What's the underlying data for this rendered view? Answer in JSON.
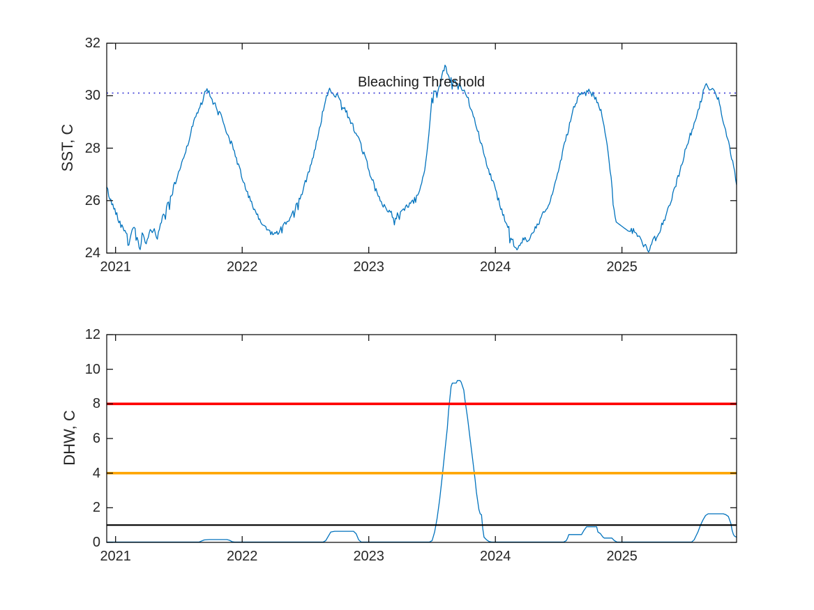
{
  "colors": {
    "series_blue": "#0072BD",
    "threshold_dotted_blue": "#4646d8",
    "dhw_red": "#ff0000",
    "dhw_orange": "#ffa500",
    "dhw_black": "#000000",
    "axis": "#000000",
    "tick_label": "#262626"
  },
  "chart_data": [
    {
      "type": "line",
      "title": "",
      "xlabel": "",
      "ylabel": "SST, C",
      "xlim": [
        2020.93,
        2025.905
      ],
      "ylim": [
        24,
        32
      ],
      "xticks": [
        2021,
        2022,
        2023,
        2024,
        2025
      ],
      "xtick_labels": [
        "2021",
        "2022",
        "2023",
        "2024",
        "2025"
      ],
      "yticks": [
        24,
        26,
        28,
        30,
        32
      ],
      "ytick_labels": [
        "24",
        "26",
        "28",
        "30",
        "32"
      ],
      "grid": false,
      "annotation": {
        "text": "Bleaching Threshold",
        "x": 2023.415,
        "y": 30.2
      },
      "ref_lines": [
        {
          "name": "bleaching-threshold",
          "y": 30.1,
          "style": "dotted",
          "color_key": "threshold_dotted_blue",
          "width": 1.8
        }
      ],
      "series": [
        {
          "name": "SST",
          "style": "noisy-daily-line",
          "color_key": "series_blue",
          "width": 1.3,
          "noise": {
            "amplitude": 0.11,
            "spike_prob": 0.05,
            "spike_max": 0.42,
            "step": 0.008,
            "seed": 42
          },
          "noise_gaps": [
            [
              2024.952,
              2025.058
            ]
          ],
          "keyframes": [
            [
              2020.93,
              26.5
            ],
            [
              2020.96,
              26.0
            ],
            [
              2021.0,
              25.6
            ],
            [
              2021.03,
              25.2
            ],
            [
              2021.06,
              24.9
            ],
            [
              2021.09,
              24.8
            ],
            [
              2021.1,
              24.1
            ],
            [
              2021.12,
              24.8
            ],
            [
              2021.15,
              24.9
            ],
            [
              2021.17,
              24.6
            ],
            [
              2021.19,
              24.05
            ],
            [
              2021.21,
              24.7
            ],
            [
              2021.24,
              24.3
            ],
            [
              2021.27,
              24.8
            ],
            [
              2021.3,
              24.9
            ],
            [
              2021.33,
              24.6
            ],
            [
              2021.36,
              25.2
            ],
            [
              2021.4,
              25.7
            ],
            [
              2021.44,
              26.2
            ],
            [
              2021.48,
              26.8
            ],
            [
              2021.52,
              27.4
            ],
            [
              2021.56,
              28.0
            ],
            [
              2021.6,
              28.7
            ],
            [
              2021.64,
              29.3
            ],
            [
              2021.67,
              29.6
            ],
            [
              2021.7,
              30.0
            ],
            [
              2021.72,
              30.2
            ],
            [
              2021.74,
              30.1
            ],
            [
              2021.76,
              29.8
            ],
            [
              2021.79,
              29.6
            ],
            [
              2021.82,
              29.4
            ],
            [
              2021.85,
              29.0
            ],
            [
              2021.88,
              28.6
            ],
            [
              2021.92,
              28.1
            ],
            [
              2021.96,
              27.5
            ],
            [
              2022.0,
              26.9
            ],
            [
              2022.04,
              26.3
            ],
            [
              2022.08,
              25.8
            ],
            [
              2022.12,
              25.4
            ],
            [
              2022.16,
              25.1
            ],
            [
              2022.2,
              24.9
            ],
            [
              2022.24,
              24.7
            ],
            [
              2022.28,
              24.8
            ],
            [
              2022.32,
              25.0
            ],
            [
              2022.36,
              25.2
            ],
            [
              2022.4,
              25.5
            ],
            [
              2022.44,
              25.9
            ],
            [
              2022.48,
              26.4
            ],
            [
              2022.52,
              27.0
            ],
            [
              2022.56,
              27.7
            ],
            [
              2022.6,
              28.5
            ],
            [
              2022.63,
              29.2
            ],
            [
              2022.66,
              29.8
            ],
            [
              2022.69,
              30.3
            ],
            [
              2022.72,
              30.1
            ],
            [
              2022.75,
              30.0
            ],
            [
              2022.78,
              29.8
            ],
            [
              2022.81,
              29.5
            ],
            [
              2022.84,
              29.2
            ],
            [
              2022.88,
              28.8
            ],
            [
              2022.92,
              28.3
            ],
            [
              2022.96,
              27.8
            ],
            [
              2023.0,
              27.2
            ],
            [
              2023.04,
              26.6
            ],
            [
              2023.08,
              26.1
            ],
            [
              2023.12,
              25.8
            ],
            [
              2023.16,
              25.6
            ],
            [
              2023.2,
              25.4
            ],
            [
              2023.24,
              25.5
            ],
            [
              2023.28,
              25.7
            ],
            [
              2023.32,
              25.8
            ],
            [
              2023.36,
              26.0
            ],
            [
              2023.4,
              26.4
            ],
            [
              2023.44,
              27.1
            ],
            [
              2023.47,
              28.2
            ],
            [
              2023.5,
              30.0
            ],
            [
              2023.52,
              30.3
            ],
            [
              2023.54,
              30.0
            ],
            [
              2023.56,
              30.4
            ],
            [
              2023.58,
              30.8
            ],
            [
              2023.6,
              31.1
            ],
            [
              2023.62,
              30.9
            ],
            [
              2023.64,
              30.5
            ],
            [
              2023.66,
              30.7
            ],
            [
              2023.68,
              30.5
            ],
            [
              2023.7,
              30.3
            ],
            [
              2023.72,
              30.4
            ],
            [
              2023.74,
              30.2
            ],
            [
              2023.76,
              30.1
            ],
            [
              2023.78,
              29.9
            ],
            [
              2023.81,
              29.5
            ],
            [
              2023.84,
              29.0
            ],
            [
              2023.87,
              28.5
            ],
            [
              2023.9,
              28.0
            ],
            [
              2023.94,
              27.3
            ],
            [
              2023.98,
              26.7
            ],
            [
              2024.02,
              26.1
            ],
            [
              2024.06,
              25.5
            ],
            [
              2024.1,
              25.0
            ],
            [
              2024.14,
              24.4
            ],
            [
              2024.17,
              24.1
            ],
            [
              2024.2,
              24.3
            ],
            [
              2024.23,
              24.6
            ],
            [
              2024.26,
              24.4
            ],
            [
              2024.3,
              24.8
            ],
            [
              2024.34,
              25.1
            ],
            [
              2024.38,
              25.5
            ],
            [
              2024.42,
              25.9
            ],
            [
              2024.46,
              26.4
            ],
            [
              2024.5,
              27.2
            ],
            [
              2024.54,
              28.0
            ],
            [
              2024.58,
              28.8
            ],
            [
              2024.61,
              29.4
            ],
            [
              2024.64,
              29.8
            ],
            [
              2024.67,
              30.1
            ],
            [
              2024.7,
              30.0
            ],
            [
              2024.73,
              30.2
            ],
            [
              2024.76,
              30.1
            ],
            [
              2024.79,
              29.9
            ],
            [
              2024.82,
              29.6
            ],
            [
              2024.85,
              29.1
            ],
            [
              2024.88,
              28.2
            ],
            [
              2024.91,
              27.0
            ],
            [
              2024.95,
              25.2
            ],
            [
              2025.06,
              24.8
            ],
            [
              2025.1,
              24.9
            ],
            [
              2025.13,
              24.6
            ],
            [
              2025.16,
              24.4
            ],
            [
              2025.19,
              24.2
            ],
            [
              2025.22,
              24.1
            ],
            [
              2025.25,
              24.5
            ],
            [
              2025.28,
              24.7
            ],
            [
              2025.31,
              25.0
            ],
            [
              2025.34,
              25.3
            ],
            [
              2025.38,
              25.9
            ],
            [
              2025.42,
              26.5
            ],
            [
              2025.46,
              27.2
            ],
            [
              2025.5,
              27.9
            ],
            [
              2025.54,
              28.5
            ],
            [
              2025.58,
              29.1
            ],
            [
              2025.61,
              29.6
            ],
            [
              2025.64,
              30.1
            ],
            [
              2025.66,
              30.4
            ],
            [
              2025.68,
              30.3
            ],
            [
              2025.7,
              30.2
            ],
            [
              2025.72,
              30.35
            ],
            [
              2025.74,
              30.1
            ],
            [
              2025.76,
              29.9
            ],
            [
              2025.78,
              29.5
            ],
            [
              2025.8,
              29.0
            ],
            [
              2025.83,
              28.4
            ],
            [
              2025.86,
              27.8
            ],
            [
              2025.89,
              27.1
            ],
            [
              2025.905,
              26.6
            ]
          ]
        }
      ]
    },
    {
      "type": "line",
      "title": "",
      "xlabel": "",
      "ylabel": "DHW, C",
      "xlim": [
        2020.93,
        2025.905
      ],
      "ylim": [
        0,
        12
      ],
      "xticks": [
        2021,
        2022,
        2023,
        2024,
        2025
      ],
      "xtick_labels": [
        "2021",
        "2022",
        "2023",
        "2024",
        "2025"
      ],
      "yticks": [
        0,
        2,
        4,
        6,
        8,
        10,
        12
      ],
      "ytick_labels": [
        "0",
        "2",
        "4",
        "6",
        "8",
        "10",
        "12"
      ],
      "grid": false,
      "ref_lines": [
        {
          "name": "dhw-level-8",
          "y": 8,
          "style": "solid",
          "color_key": "dhw_red",
          "width": 3.6
        },
        {
          "name": "dhw-level-4",
          "y": 4,
          "style": "solid",
          "color_key": "dhw_orange",
          "width": 3.6
        },
        {
          "name": "dhw-level-1",
          "y": 1,
          "style": "solid",
          "color_key": "dhw_black",
          "width": 2.2
        }
      ],
      "series": [
        {
          "name": "DHW",
          "style": "line",
          "color_key": "series_blue",
          "width": 1.3,
          "points": [
            [
              2020.93,
              0.02
            ],
            [
              2021.66,
              0.02
            ],
            [
              2021.68,
              0.08
            ],
            [
              2021.7,
              0.14
            ],
            [
              2021.74,
              0.16
            ],
            [
              2021.88,
              0.16
            ],
            [
              2021.9,
              0.12
            ],
            [
              2021.92,
              0.04
            ],
            [
              2021.94,
              0.02
            ],
            [
              2022.64,
              0.02
            ],
            [
              2022.66,
              0.1
            ],
            [
              2022.68,
              0.35
            ],
            [
              2022.7,
              0.6
            ],
            [
              2022.73,
              0.64
            ],
            [
              2022.88,
              0.64
            ],
            [
              2022.9,
              0.5
            ],
            [
              2022.92,
              0.15
            ],
            [
              2022.94,
              0.02
            ],
            [
              2023.48,
              0.02
            ],
            [
              2023.5,
              0.1
            ],
            [
              2023.52,
              0.6
            ],
            [
              2023.54,
              1.4
            ],
            [
              2023.56,
              2.5
            ],
            [
              2023.58,
              3.8
            ],
            [
              2023.6,
              5.2
            ],
            [
              2023.62,
              6.6
            ],
            [
              2023.63,
              7.6
            ],
            [
              2023.64,
              8.3
            ],
            [
              2023.65,
              9.0
            ],
            [
              2023.66,
              9.2
            ],
            [
              2023.69,
              9.2
            ],
            [
              2023.7,
              9.35
            ],
            [
              2023.72,
              9.35
            ],
            [
              2023.73,
              9.25
            ],
            [
              2023.75,
              8.8
            ],
            [
              2023.76,
              8.2
            ],
            [
              2023.78,
              7.2
            ],
            [
              2023.8,
              6.0
            ],
            [
              2023.82,
              4.8
            ],
            [
              2023.84,
              3.6
            ],
            [
              2023.85,
              2.9
            ],
            [
              2023.87,
              1.9
            ],
            [
              2023.88,
              1.65
            ],
            [
              2023.89,
              1.6
            ],
            [
              2023.9,
              0.8
            ],
            [
              2023.91,
              0.3
            ],
            [
              2023.93,
              0.15
            ],
            [
              2023.95,
              0.05
            ],
            [
              2023.97,
              0.02
            ],
            [
              2024.54,
              0.02
            ],
            [
              2024.56,
              0.1
            ],
            [
              2024.57,
              0.25
            ],
            [
              2024.58,
              0.45
            ],
            [
              2024.68,
              0.45
            ],
            [
              2024.7,
              0.7
            ],
            [
              2024.72,
              0.9
            ],
            [
              2024.8,
              0.9
            ],
            [
              2024.81,
              0.6
            ],
            [
              2024.83,
              0.5
            ],
            [
              2024.85,
              0.3
            ],
            [
              2024.86,
              0.25
            ],
            [
              2024.92,
              0.25
            ],
            [
              2024.94,
              0.1
            ],
            [
              2024.96,
              0.02
            ],
            [
              2025.55,
              0.02
            ],
            [
              2025.57,
              0.15
            ],
            [
              2025.58,
              0.3
            ],
            [
              2025.6,
              0.6
            ],
            [
              2025.62,
              1.0
            ],
            [
              2025.64,
              1.3
            ],
            [
              2025.66,
              1.55
            ],
            [
              2025.68,
              1.65
            ],
            [
              2025.8,
              1.65
            ],
            [
              2025.82,
              1.6
            ],
            [
              2025.84,
              1.5
            ],
            [
              2025.86,
              1.1
            ],
            [
              2025.87,
              0.7
            ],
            [
              2025.88,
              0.45
            ],
            [
              2025.89,
              0.35
            ],
            [
              2025.905,
              0.3
            ]
          ]
        }
      ]
    }
  ]
}
